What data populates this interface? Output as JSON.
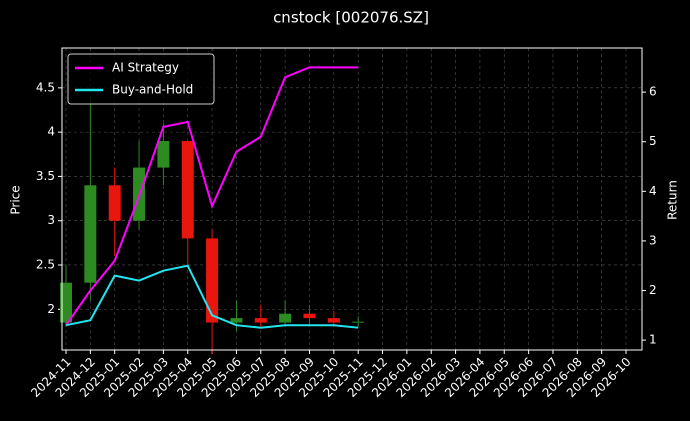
{
  "chart_data": {
    "type": "candlestick",
    "title": "cnstock [002076.SZ]",
    "ylabel": "Price",
    "y2label": "Return",
    "x": [
      "2024-11",
      "2024-12",
      "2025-01",
      "2025-02",
      "2025-03",
      "2025-04",
      "2025-05",
      "2025-06",
      "2025-07",
      "2025-08",
      "2025-09",
      "2025-10",
      "2025-11"
    ],
    "open": [
      1.85,
      2.3,
      3.4,
      3.0,
      3.6,
      3.9,
      2.8,
      1.85,
      1.9,
      1.85,
      1.95,
      1.9,
      1.85
    ],
    "high": [
      2.5,
      4.4,
      3.6,
      3.9,
      4.1,
      3.9,
      2.9,
      2.1,
      2.05,
      2.1,
      2.05,
      1.98,
      1.92
    ],
    "low": [
      1.8,
      2.1,
      2.6,
      2.9,
      3.4,
      2.5,
      1.5,
      1.75,
      1.8,
      1.8,
      1.82,
      1.8,
      1.8
    ],
    "close": [
      2.3,
      3.4,
      3.0,
      3.6,
      3.9,
      2.8,
      1.85,
      1.9,
      1.85,
      1.95,
      1.9,
      1.85,
      1.86
    ],
    "up_color": "#2e8b22",
    "down_color": "#e8160c",
    "series": [
      {
        "name": "AI Strategy",
        "color": "#ff00ff",
        "axis": "y2",
        "values": [
          1.3,
          2.0,
          2.6,
          3.9,
          5.3,
          5.4,
          3.7,
          4.8,
          5.1,
          6.3,
          6.5,
          6.5,
          6.5
        ]
      },
      {
        "name": "Buy-and-Hold",
        "color": "#22e5f0",
        "axis": "y2",
        "values": [
          1.3,
          1.4,
          2.3,
          2.2,
          2.4,
          2.5,
          1.5,
          1.3,
          1.25,
          1.3,
          1.3,
          1.3,
          1.25
        ]
      }
    ],
    "xlim": [
      "2024-11",
      "2026-10"
    ],
    "xticks": [
      "2024-11",
      "2024-12",
      "2025-01",
      "2025-02",
      "2025-03",
      "2025-04",
      "2025-05",
      "2025-06",
      "2025-07",
      "2025-08",
      "2025-09",
      "2025-10",
      "2025-11",
      "2025-12",
      "2026-01",
      "2026-02",
      "2026-03",
      "2026-04",
      "2026-05",
      "2026-06",
      "2026-07",
      "2026-08",
      "2026-09",
      "2026-10"
    ],
    "ylim": [
      1.54,
      4.95
    ],
    "yticks": [
      2.0,
      2.5,
      3.0,
      3.5,
      4.0,
      4.5
    ],
    "y2lim": [
      0.8,
      6.89
    ],
    "y2ticks": [
      1,
      2,
      3,
      4,
      5,
      6
    ],
    "grid": true,
    "legend": "upper left"
  }
}
